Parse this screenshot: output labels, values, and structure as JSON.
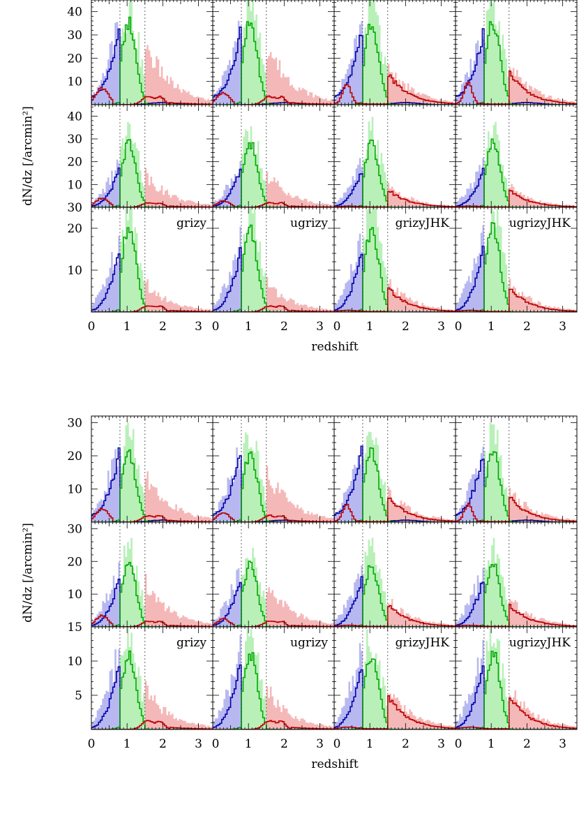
{
  "chart_data": [
    {
      "type": "histogram-grid",
      "ylabel": "dN/dz [/arcmin²]",
      "xlabel": "redshift",
      "xlim": [
        0,
        3.4
      ],
      "x_ticks": [
        "0",
        "1",
        "2",
        "3"
      ],
      "row_ylims": [
        [
          0,
          45
        ],
        [
          0,
          45
        ],
        [
          0,
          25
        ]
      ],
      "row_y_ticks": [
        [
          "10",
          "20",
          "30",
          "40"
        ],
        [
          "10",
          "20",
          "30",
          "40"
        ],
        [
          "10",
          "20"
        ]
      ],
      "extra_y_tick_label": "30",
      "columns": [
        "grizy",
        "ugrizy",
        "grizyJHK",
        "ugrizyJHK"
      ],
      "bin_edges_z": [
        0.8,
        1.5
      ],
      "colors": {
        "low_z": "#0000aa",
        "mid_z": "#00aa00",
        "high_z": "#bb0000",
        "low_fill": "#b8b8f0",
        "mid_fill": "#b8f0b8",
        "high_fill": "#f5b8b8"
      },
      "bin_amplitudes": [
        [
          30,
          35,
          14
        ],
        [
          17,
          28,
          8
        ],
        [
          15,
          20,
          6
        ]
      ]
    },
    {
      "type": "histogram-grid",
      "ylabel": "dN/dz [/arcmin²]",
      "xlabel": "redshift",
      "xlim": [
        0,
        3.4
      ],
      "x_ticks": [
        "0",
        "1",
        "2",
        "3"
      ],
      "row_ylims": [
        [
          0,
          32
        ],
        [
          0,
          32
        ],
        [
          0,
          15
        ]
      ],
      "row_y_ticks": [
        [
          "10",
          "20",
          "30"
        ],
        [
          "10",
          "20",
          "30"
        ],
        [
          "5",
          "10",
          "15"
        ]
      ],
      "columns": [
        "grizy",
        "ugrizy",
        "grizyJHK",
        "ugrizyJHK"
      ],
      "bin_edges_z": [
        0.8,
        1.5
      ],
      "colors": {
        "low_z": "#0000aa",
        "mid_z": "#00aa00",
        "high_z": "#bb0000",
        "low_fill": "#b8b8f0",
        "mid_fill": "#b8f0b8",
        "high_fill": "#f5b8b8"
      },
      "bin_amplitudes": [
        [
          20,
          21,
          8
        ],
        [
          15,
          19,
          7
        ],
        [
          10,
          11,
          5
        ]
      ]
    }
  ]
}
